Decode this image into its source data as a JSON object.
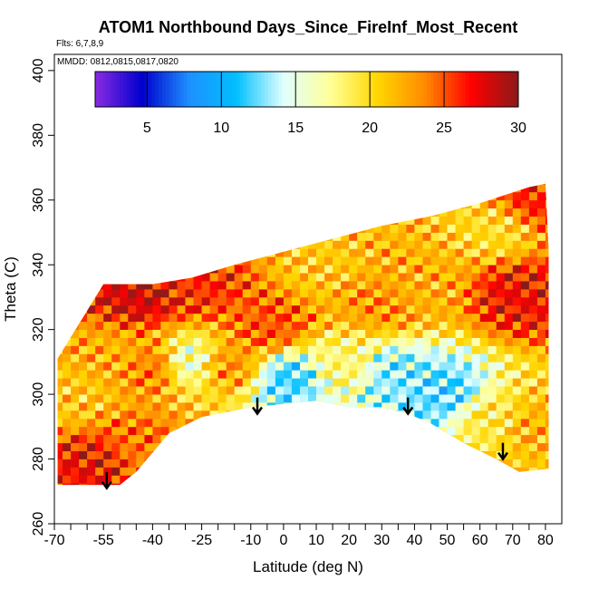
{
  "chart_data": {
    "type": "heatmap",
    "title": "ATOM1 Northbound Days_Since_FireInf_Most_Recent",
    "flights_label": "Flts: 6,7,8,9",
    "dates_label": "MMDD: 0812,0815,0817,0820",
    "xlabel": "Latitude (deg N)",
    "ylabel": "Theta (C)",
    "xlim": [
      -70,
      85
    ],
    "ylim": [
      260,
      405
    ],
    "x_ticks": [
      -70,
      -55,
      -40,
      -25,
      -10,
      0,
      10,
      20,
      30,
      40,
      50,
      60,
      70,
      80
    ],
    "x_tick_labels": [
      "-70",
      "-55",
      "-40",
      "-25",
      "-10",
      "0",
      "10",
      "20",
      "30",
      "40",
      "50",
      "60",
      "70",
      "80"
    ],
    "x_minor_ticks": [
      -65,
      -60,
      -50,
      -45,
      -35,
      -30,
      -20,
      -15,
      -5,
      5,
      15,
      25,
      35,
      45,
      55,
      65,
      75
    ],
    "y_ticks": [
      260,
      280,
      300,
      320,
      340,
      360,
      380,
      400
    ],
    "y_tick_labels": [
      "260",
      "280",
      "300",
      "320",
      "340",
      "360",
      "380",
      "400"
    ],
    "colorbar": {
      "range": [
        1.5,
        30
      ],
      "ticks": [
        5,
        10,
        15,
        20,
        25,
        30
      ],
      "tick_labels": [
        "5",
        "10",
        "15",
        "20",
        "25",
        "30"
      ],
      "colors": [
        "#8a2be2",
        "#0000cd",
        "#1e90ff",
        "#00bfff",
        "#e0ffff",
        "#ffff99",
        "#ffd700",
        "#ff8c00",
        "#ff0000",
        "#8b1a1a"
      ]
    },
    "upper_boundary": [
      [
        -55,
        334
      ],
      [
        -40,
        334
      ],
      [
        -28,
        336
      ],
      [
        -15,
        340
      ],
      [
        0,
        344
      ],
      [
        15,
        348
      ],
      [
        30,
        352
      ],
      [
        45,
        355
      ],
      [
        60,
        359
      ],
      [
        75,
        364
      ],
      [
        80,
        365
      ],
      [
        81,
        344
      ],
      [
        81,
        335
      ]
    ],
    "lower_boundary": [
      [
        -69,
        311
      ],
      [
        -69,
        272
      ],
      [
        -50,
        272
      ],
      [
        -45,
        276
      ],
      [
        -35,
        288
      ],
      [
        -25,
        293
      ],
      [
        -10,
        296
      ],
      [
        0,
        297
      ],
      [
        10,
        298
      ],
      [
        20,
        296
      ],
      [
        30,
        296
      ],
      [
        38,
        294
      ],
      [
        45,
        291
      ],
      [
        55,
        285
      ],
      [
        65,
        280
      ],
      [
        72,
        276
      ],
      [
        81,
        277
      ],
      [
        81,
        335
      ]
    ],
    "arrows_latitude": [
      -54,
      -8,
      38,
      67
    ],
    "arrows_theta_top": [
      276,
      299,
      299,
      285
    ],
    "arrows_theta_tip": [
      271,
      294,
      294,
      280
    ],
    "zones": [
      {
        "x": [
          -69,
          -50
        ],
        "y": [
          272,
          283
        ],
        "value": 27
      },
      {
        "x": [
          -50,
          -40
        ],
        "y": [
          276,
          290
        ],
        "value": 24
      },
      {
        "x": [
          -69,
          -60
        ],
        "y": [
          283,
          312
        ],
        "value": 21
      },
      {
        "x": [
          -60,
          -45
        ],
        "y": [
          290,
          330
        ],
        "value": 22
      },
      {
        "x": [
          -55,
          -35
        ],
        "y": [
          325,
          334
        ],
        "value": 28
      },
      {
        "x": [
          -48,
          -35
        ],
        "y": [
          300,
          315
        ],
        "value": 24
      },
      {
        "x": [
          -35,
          -25
        ],
        "y": [
          290,
          328
        ],
        "value": 16
      },
      {
        "x": [
          -25,
          -10
        ],
        "y": [
          296,
          320
        ],
        "value": 23
      },
      {
        "x": [
          -35,
          -20
        ],
        "y": [
          328,
          337
        ],
        "value": 26
      },
      {
        "x": [
          -10,
          10
        ],
        "y": [
          297,
          310
        ],
        "value": 12
      },
      {
        "x": [
          -15,
          5
        ],
        "y": [
          310,
          330
        ],
        "value": 25
      },
      {
        "x": [
          0,
          20
        ],
        "y": [
          330,
          346
        ],
        "value": 21
      },
      {
        "x": [
          10,
          25
        ],
        "y": [
          298,
          318
        ],
        "value": 18
      },
      {
        "x": [
          25,
          40
        ],
        "y": [
          294,
          315
        ],
        "value": 13
      },
      {
        "x": [
          20,
          35
        ],
        "y": [
          318,
          335
        ],
        "value": 23
      },
      {
        "x": [
          40,
          55
        ],
        "y": [
          288,
          310
        ],
        "value": 12
      },
      {
        "x": [
          35,
          50
        ],
        "y": [
          320,
          345
        ],
        "value": 22
      },
      {
        "x": [
          55,
          70
        ],
        "y": [
          282,
          300
        ],
        "value": 19
      },
      {
        "x": [
          70,
          80
        ],
        "y": [
          278,
          300
        ],
        "value": 22
      },
      {
        "x": [
          60,
          80
        ],
        "y": [
          320,
          340
        ],
        "value": 27
      },
      {
        "x": [
          50,
          75
        ],
        "y": [
          340,
          358
        ],
        "value": 20
      },
      {
        "x": [
          73,
          80
        ],
        "y": [
          356,
          364
        ],
        "value": 26
      }
    ],
    "legend_position": "top",
    "grid": false
  }
}
